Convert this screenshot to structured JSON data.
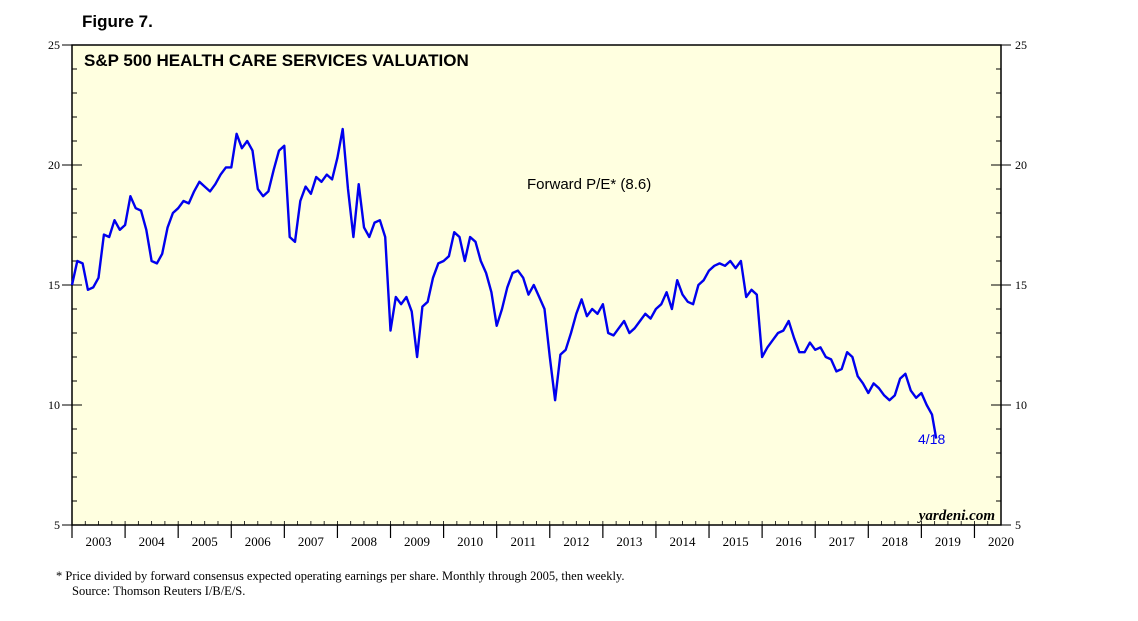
{
  "figure_label": "Figure 7.",
  "chart_data": {
    "type": "line",
    "title": "S&P 500 HEALTH CARE SERVICES VALUATION",
    "ylim": [
      5,
      25
    ],
    "yticks": [
      5,
      10,
      15,
      20,
      25
    ],
    "xlim": [
      2003,
      2020.5
    ],
    "x_labels": [
      "2003",
      "2004",
      "2005",
      "2006",
      "2007",
      "2008",
      "2009",
      "2010",
      "2011",
      "2012",
      "2013",
      "2014",
      "2015",
      "2016",
      "2017",
      "2018",
      "2019",
      "2020"
    ],
    "series": [
      {
        "name": "Forward P/E*",
        "label": "Forward P/E* (8.6)",
        "color": "#0000ee",
        "x": [
          2003.0,
          2003.1,
          2003.2,
          2003.3,
          2003.4,
          2003.5,
          2003.6,
          2003.7,
          2003.8,
          2003.9,
          2004.0,
          2004.1,
          2004.2,
          2004.3,
          2004.4,
          2004.5,
          2004.6,
          2004.7,
          2004.8,
          2004.9,
          2005.0,
          2005.1,
          2005.2,
          2005.3,
          2005.4,
          2005.5,
          2005.6,
          2005.7,
          2005.8,
          2005.9,
          2006.0,
          2006.1,
          2006.2,
          2006.3,
          2006.4,
          2006.5,
          2006.6,
          2006.7,
          2006.8,
          2006.9,
          2007.0,
          2007.1,
          2007.2,
          2007.3,
          2007.4,
          2007.5,
          2007.6,
          2007.7,
          2007.8,
          2007.9,
          2008.0,
          2008.1,
          2008.2,
          2008.3,
          2008.4,
          2008.5,
          2008.6,
          2008.7,
          2008.8,
          2008.9,
          2009.0,
          2009.1,
          2009.2,
          2009.3,
          2009.4,
          2009.5,
          2009.6,
          2009.7,
          2009.8,
          2009.9,
          2010.0,
          2010.1,
          2010.2,
          2010.3,
          2010.4,
          2010.5,
          2010.6,
          2010.7,
          2010.8,
          2010.9,
          2011.0,
          2011.1,
          2011.2,
          2011.3,
          2011.4,
          2011.5,
          2011.6,
          2011.7,
          2011.8,
          2011.9,
          2012.0,
          2012.1,
          2012.2,
          2012.3,
          2012.4,
          2012.5,
          2012.6,
          2012.7,
          2012.8,
          2012.9,
          2013.0,
          2013.1,
          2013.2,
          2013.3,
          2013.4,
          2013.5,
          2013.6,
          2013.7,
          2013.8,
          2013.9,
          2014.0,
          2014.1,
          2014.2,
          2014.3,
          2014.4,
          2014.5,
          2014.6,
          2014.7,
          2014.8,
          2014.9,
          2015.0,
          2015.1,
          2015.2,
          2015.3,
          2015.4,
          2015.5,
          2015.6,
          2015.7,
          2015.8,
          2015.9,
          2016.0,
          2016.1,
          2016.2,
          2016.3,
          2016.4,
          2016.5,
          2016.6,
          2016.7,
          2016.8,
          2016.9,
          2017.0,
          2017.1,
          2017.2,
          2017.3,
          2017.4,
          2017.5,
          2017.6,
          2017.7,
          2017.8,
          2017.9,
          2018.0,
          2018.1,
          2018.2,
          2018.3,
          2018.4,
          2018.5,
          2018.6,
          2018.7,
          2018.8,
          2018.9,
          2019.0,
          2019.1,
          2019.2,
          2019.28
        ],
        "values": [
          15.0,
          16.0,
          15.9,
          14.8,
          14.9,
          15.3,
          17.1,
          17.0,
          17.7,
          17.3,
          17.5,
          18.7,
          18.2,
          18.1,
          17.3,
          16.0,
          15.9,
          16.3,
          17.4,
          18.0,
          18.2,
          18.5,
          18.4,
          18.9,
          19.3,
          19.1,
          18.9,
          19.2,
          19.6,
          19.9,
          19.9,
          21.3,
          20.7,
          21.0,
          20.6,
          19.0,
          18.7,
          18.9,
          19.8,
          20.6,
          20.8,
          17.0,
          16.8,
          18.5,
          19.1,
          18.8,
          19.5,
          19.3,
          19.6,
          19.4,
          20.3,
          21.5,
          19.0,
          17.0,
          19.2,
          17.4,
          17.0,
          17.6,
          17.7,
          17.0,
          13.1,
          14.5,
          14.2,
          14.5,
          13.9,
          12.0,
          14.1,
          14.3,
          15.3,
          15.9,
          16.0,
          16.2,
          17.2,
          17.0,
          16.0,
          17.0,
          16.8,
          16.0,
          15.5,
          14.7,
          13.3,
          14.0,
          14.9,
          15.5,
          15.6,
          15.3,
          14.6,
          15.0,
          14.5,
          14.0,
          12.0,
          10.2,
          12.1,
          12.3,
          13.0,
          13.8,
          14.4,
          13.7,
          14.0,
          13.8,
          14.2,
          13.0,
          12.9,
          13.2,
          13.5,
          13.0,
          13.2,
          13.5,
          13.8,
          13.6,
          14.0,
          14.2,
          14.7,
          14.0,
          15.2,
          14.6,
          14.3,
          14.2,
          15.0,
          15.2,
          15.6,
          15.8,
          15.9,
          15.8,
          16.0,
          15.7,
          16.0,
          14.5,
          14.8,
          14.6,
          12.0,
          12.4,
          12.7,
          13.0,
          13.1,
          13.5,
          12.8,
          12.2,
          12.2,
          12.6,
          12.3,
          12.4,
          12.0,
          11.9,
          11.4,
          11.5,
          12.2,
          12.0,
          11.2,
          10.9,
          10.5,
          10.9,
          10.7,
          10.4,
          10.2,
          10.4,
          11.1,
          11.3,
          10.6,
          10.3,
          10.5,
          10.0,
          9.6,
          8.6
        ],
        "end_label": "4/18"
      }
    ],
    "annotations": [
      "Forward P/E* (8.6)",
      "yardeni.com"
    ],
    "footnote": "*  Price divided by forward consensus expected operating earnings per share. Monthly through 2005, then weekly.",
    "source": "Source: Thomson Reuters I/B/E/S.",
    "colors": {
      "background": "#ffffe0",
      "frame": "#000000",
      "line": "#0000ee"
    }
  }
}
